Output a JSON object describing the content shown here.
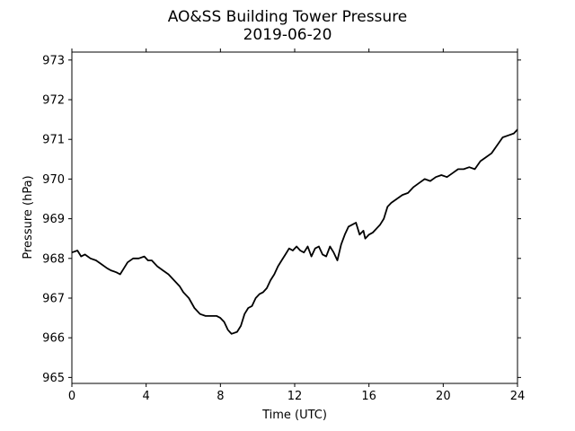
{
  "chart_data": {
    "type": "line",
    "title": "AO&SS Building Tower Pressure",
    "subtitle": "2019-06-20",
    "xlabel": "Time (UTC)",
    "ylabel": "Pressure (hPa)",
    "xlim": [
      0,
      24
    ],
    "ylim": [
      964.85,
      973.2
    ],
    "xticks": [
      0,
      4,
      8,
      12,
      16,
      20,
      24
    ],
    "yticks": [
      965,
      966,
      967,
      968,
      969,
      970,
      971,
      972,
      973
    ],
    "grid": false,
    "legend": "none",
    "line_color": "#000000",
    "series": [
      {
        "x": [
          0,
          0.3,
          0.5,
          0.7,
          1.0,
          1.3,
          1.6,
          1.9,
          2.1,
          2.4,
          2.6,
          2.8,
          3.0,
          3.3,
          3.6,
          3.9,
          4.1,
          4.3,
          4.6,
          4.9,
          5.2,
          5.5,
          5.8,
          6.0,
          6.3,
          6.6,
          6.9,
          7.2,
          7.5,
          7.8,
          8.0,
          8.2,
          8.4,
          8.6,
          8.9,
          9.1,
          9.3,
          9.5,
          9.7,
          9.9,
          10.1,
          10.3,
          10.5,
          10.7,
          10.9,
          11.1,
          11.3,
          11.5,
          11.7,
          11.9,
          12.1,
          12.3,
          12.5,
          12.7,
          12.9,
          13.1,
          13.3,
          13.5,
          13.7,
          13.9,
          14.1,
          14.3,
          14.5,
          14.7,
          14.9,
          15.1,
          15.3,
          15.5,
          15.7,
          15.8,
          16.0,
          16.2,
          16.4,
          16.6,
          16.8,
          17.0,
          17.2,
          17.5,
          17.8,
          18.1,
          18.4,
          18.7,
          19.0,
          19.3,
          19.6,
          19.9,
          20.2,
          20.5,
          20.8,
          21.1,
          21.4,
          21.7,
          22.0,
          22.3,
          22.6,
          22.9,
          23.2,
          23.5,
          23.8,
          24.0
        ],
        "y": [
          968.15,
          968.2,
          968.05,
          968.1,
          968.0,
          967.95,
          967.85,
          967.75,
          967.7,
          967.65,
          967.6,
          967.75,
          967.9,
          968.0,
          968.0,
          968.05,
          967.95,
          967.95,
          967.8,
          967.7,
          967.6,
          967.45,
          967.3,
          967.15,
          967.0,
          966.75,
          966.6,
          966.55,
          966.55,
          966.55,
          966.5,
          966.4,
          966.2,
          966.1,
          966.15,
          966.3,
          966.6,
          966.75,
          966.8,
          967.0,
          967.1,
          967.15,
          967.25,
          967.45,
          967.6,
          967.8,
          967.95,
          968.1,
          968.25,
          968.2,
          968.3,
          968.2,
          968.15,
          968.3,
          968.05,
          968.25,
          968.3,
          968.1,
          968.05,
          968.3,
          968.15,
          967.95,
          968.35,
          968.6,
          968.8,
          968.85,
          968.9,
          968.6,
          968.7,
          968.5,
          968.6,
          968.65,
          968.75,
          968.85,
          969.0,
          969.3,
          969.4,
          969.5,
          969.6,
          969.65,
          969.8,
          969.9,
          970.0,
          969.95,
          970.05,
          970.1,
          970.05,
          970.15,
          970.25,
          970.25,
          970.3,
          970.25,
          970.45,
          970.55,
          970.65,
          970.85,
          971.05,
          971.1,
          971.15,
          971.25
        ]
      }
    ]
  }
}
